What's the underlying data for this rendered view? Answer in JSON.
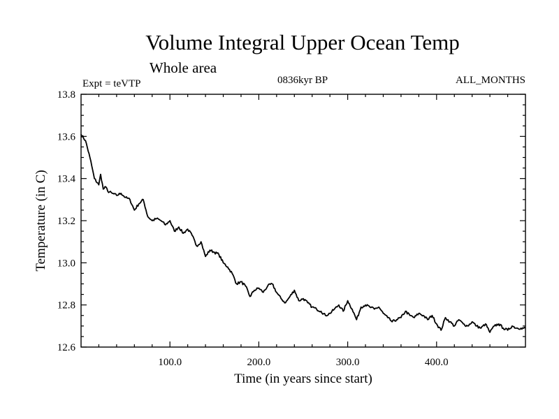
{
  "chart_data": {
    "type": "line",
    "title": "Volume Integral Upper Ocean Temp",
    "subtitle": "Whole area",
    "left_label": "Expt = teVTP",
    "center_label": "0836kyr BP",
    "right_label": "ALL_MONTHS",
    "xlabel": "Time (in years since start)",
    "ylabel": "Temperature (in C)",
    "xlim": [
      0,
      500
    ],
    "ylim": [
      12.6,
      13.8
    ],
    "x_ticks": [
      {
        "value": 100,
        "label": "100.0"
      },
      {
        "value": 200,
        "label": "200.0"
      },
      {
        "value": 300,
        "label": "300.0"
      },
      {
        "value": 400,
        "label": "400.0"
      }
    ],
    "y_ticks": [
      {
        "value": 12.6,
        "label": "12.6"
      },
      {
        "value": 12.8,
        "label": "12.8"
      },
      {
        "value": 13.0,
        "label": "13.0"
      },
      {
        "value": 13.2,
        "label": "13.2"
      },
      {
        "value": 13.4,
        "label": "13.4"
      },
      {
        "value": 13.6,
        "label": "13.6"
      },
      {
        "value": 13.8,
        "label": "13.8"
      }
    ],
    "series": [
      {
        "name": "teVTP",
        "color": "#000000",
        "x": [
          0,
          5,
          10,
          15,
          20,
          22,
          25,
          28,
          30,
          35,
          40,
          45,
          50,
          55,
          60,
          65,
          70,
          75,
          80,
          85,
          90,
          95,
          100,
          105,
          110,
          115,
          120,
          125,
          130,
          135,
          140,
          145,
          150,
          155,
          160,
          165,
          170,
          175,
          180,
          185,
          190,
          195,
          200,
          205,
          210,
          215,
          220,
          225,
          230,
          235,
          240,
          245,
          250,
          255,
          260,
          265,
          270,
          275,
          280,
          285,
          290,
          295,
          300,
          305,
          310,
          315,
          320,
          325,
          330,
          335,
          340,
          345,
          350,
          355,
          360,
          365,
          370,
          375,
          380,
          385,
          390,
          395,
          400,
          405,
          410,
          415,
          420,
          425,
          430,
          435,
          440,
          445,
          450,
          455,
          460,
          465,
          470,
          475,
          480,
          485,
          490,
          495,
          500
        ],
        "values": [
          13.61,
          13.58,
          13.5,
          13.4,
          13.37,
          13.42,
          13.35,
          13.36,
          13.34,
          13.33,
          13.32,
          13.33,
          13.31,
          13.3,
          13.25,
          13.28,
          13.3,
          13.22,
          13.2,
          13.21,
          13.2,
          13.18,
          13.2,
          13.15,
          13.17,
          13.14,
          13.16,
          13.13,
          13.08,
          13.1,
          13.03,
          13.06,
          13.05,
          13.04,
          13.0,
          12.98,
          12.95,
          12.9,
          12.91,
          12.89,
          12.84,
          12.87,
          12.88,
          12.86,
          12.89,
          12.9,
          12.86,
          12.83,
          12.81,
          12.84,
          12.87,
          12.82,
          12.83,
          12.81,
          12.79,
          12.78,
          12.77,
          12.75,
          12.76,
          12.78,
          12.8,
          12.77,
          12.82,
          12.78,
          12.73,
          12.79,
          12.8,
          12.79,
          12.78,
          12.79,
          12.76,
          12.74,
          12.72,
          12.73,
          12.74,
          12.77,
          12.75,
          12.74,
          12.76,
          12.75,
          12.73,
          12.75,
          12.71,
          12.68,
          12.74,
          12.72,
          12.7,
          12.73,
          12.71,
          12.7,
          12.72,
          12.7,
          12.69,
          12.71,
          12.67,
          12.7,
          12.71,
          12.69,
          12.68,
          12.7,
          12.69,
          12.69,
          12.69
        ]
      }
    ]
  }
}
